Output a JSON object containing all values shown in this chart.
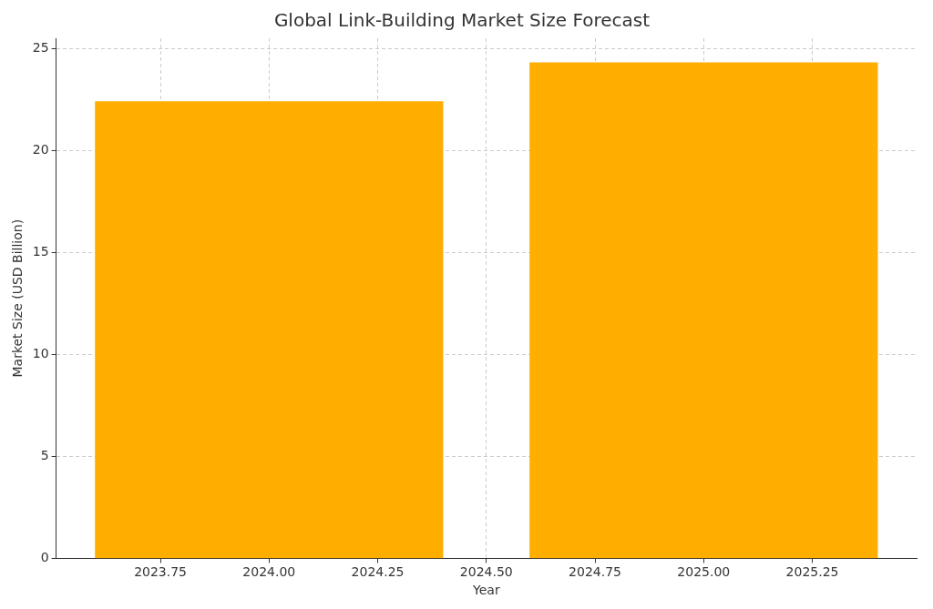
{
  "chart_data": {
    "type": "bar",
    "title": "Global Link-Building Market Size Forecast",
    "xlabel": "Year",
    "ylabel": "Market Size (USD Billion)",
    "x": [
      2024,
      2025
    ],
    "values": [
      22.4,
      24.3
    ],
    "color": "#ffae00",
    "xlim": [
      2023.51,
      2025.49
    ],
    "xticks": [
      2023.75,
      {
        "value": 2024,
        "label": "2024.00"
      },
      2024.25,
      {
        "value": 2024.5,
        "label": "2024.50"
      },
      2024.75,
      {
        "value": 2025,
        "label": "2025.00"
      },
      2025.25
    ],
    "ylim": [
      0,
      25.5
    ],
    "yticks": [
      0,
      5,
      10,
      15,
      20,
      25
    ],
    "grid": true
  }
}
